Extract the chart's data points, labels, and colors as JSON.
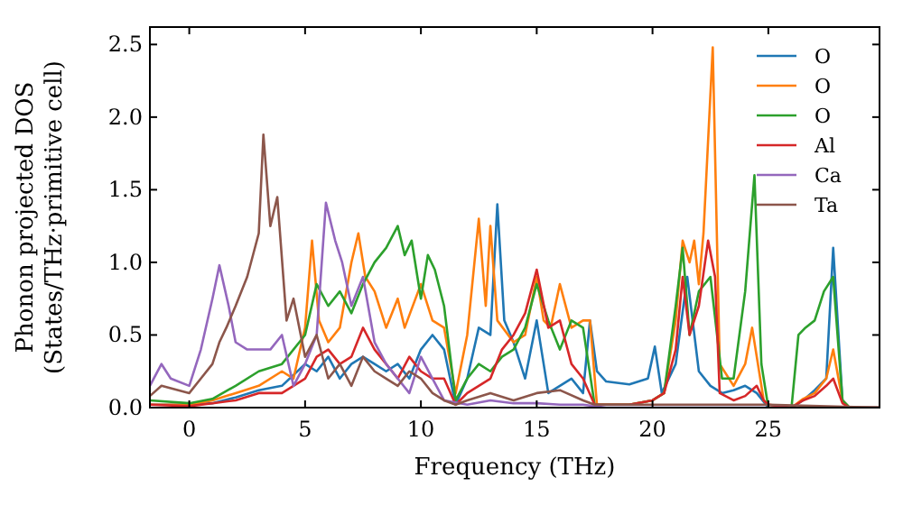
{
  "chart_data": {
    "type": "line",
    "xlabel": "Frequency (THz)",
    "ylabel": "Phonon projected DOS\n(States/THz·primitive cell)",
    "xlim": [
      -1.7,
      29.8
    ],
    "ylim": [
      0,
      2.62
    ],
    "xticks": [
      0,
      5,
      10,
      15,
      20,
      25
    ],
    "yticks": [
      {
        "value": 0,
        "label": "0.0"
      },
      {
        "value": 0.5,
        "label": "0.5"
      },
      {
        "value": 1,
        "label": "1.0"
      },
      {
        "value": 1.5,
        "label": "1.5"
      },
      {
        "value": 2,
        "label": "2.0"
      },
      {
        "value": 2.5,
        "label": "2.5"
      }
    ],
    "grid": false,
    "legend": "top right",
    "line_style": "solid",
    "series": [
      {
        "name": "O",
        "color": "#1f77b4",
        "x": [
          -1.7,
          0,
          1,
          2,
          3,
          4,
          5,
          5.5,
          6,
          6.5,
          7,
          7.5,
          8,
          8.5,
          9,
          9.5,
          10,
          10.5,
          11,
          11.5,
          12,
          12.5,
          13,
          13.3,
          13.6,
          14,
          14.5,
          15,
          15.5,
          16,
          16.5,
          17,
          17.3,
          17.6,
          18,
          19,
          19.8,
          20.1,
          20.4,
          21,
          21.5,
          22,
          22.5,
          23,
          23.5,
          24,
          24.5,
          25,
          26,
          26.5,
          27,
          27.5,
          27.8,
          28.2,
          28.5,
          29.8
        ],
        "values": [
          0.02,
          0.02,
          0.03,
          0.07,
          0.12,
          0.15,
          0.3,
          0.25,
          0.35,
          0.2,
          0.3,
          0.35,
          0.3,
          0.25,
          0.3,
          0.2,
          0.4,
          0.5,
          0.4,
          0.02,
          0.2,
          0.55,
          0.5,
          1.4,
          0.6,
          0.45,
          0.2,
          0.6,
          0.1,
          0.15,
          0.2,
          0.1,
          0.6,
          0.25,
          0.18,
          0.16,
          0.2,
          0.42,
          0.1,
          0.3,
          0.9,
          0.25,
          0.15,
          0.1,
          0.12,
          0.15,
          0.1,
          0,
          0,
          0.05,
          0.12,
          0.2,
          1.1,
          0.05,
          0,
          0
        ]
      },
      {
        "name": "O",
        "color": "#ff7f0e",
        "x": [
          -1.7,
          0,
          1,
          2,
          3,
          4,
          4.5,
          5,
          5.3,
          5.6,
          6,
          6.5,
          7,
          7.3,
          7.6,
          8,
          8.5,
          9,
          9.3,
          10,
          10.5,
          11,
          11.5,
          12,
          12.5,
          12.8,
          13,
          13.3,
          14,
          14.5,
          15,
          15.3,
          15.6,
          16,
          16.5,
          17,
          17.3,
          17.6,
          19,
          20,
          20.5,
          21,
          21.3,
          21.6,
          21.8,
          22,
          22.2,
          22.6,
          22.9,
          23.5,
          24,
          24.3,
          24.5,
          24.8,
          25,
          26,
          26.5,
          27,
          27.5,
          27.8,
          28.2,
          28.5,
          29.8
        ],
        "values": [
          0.02,
          0.02,
          0.05,
          0.1,
          0.15,
          0.25,
          0.2,
          0.55,
          1.15,
          0.6,
          0.45,
          0.55,
          1,
          1.2,
          0.9,
          0.8,
          0.55,
          0.75,
          0.55,
          0.85,
          0.6,
          0.55,
          0.1,
          0.5,
          1.3,
          0.7,
          1.25,
          0.6,
          0.45,
          0.5,
          0.9,
          0.6,
          0.55,
          0.85,
          0.55,
          0.6,
          0.6,
          0.02,
          0.02,
          0.05,
          0.1,
          0.6,
          1.15,
          1,
          1.15,
          0.85,
          1.2,
          2.48,
          0.3,
          0.15,
          0.3,
          0.55,
          0.35,
          0.05,
          0.02,
          0,
          0.06,
          0.1,
          0.2,
          0.4,
          0.05,
          0,
          0
        ]
      },
      {
        "name": "O",
        "color": "#2ca02c",
        "x": [
          -1.7,
          0,
          1,
          2,
          3,
          4,
          5,
          5.5,
          6,
          6.5,
          7,
          7.5,
          8,
          8.5,
          9,
          9.3,
          9.6,
          10,
          10.3,
          10.6,
          11,
          11.5,
          12,
          12.5,
          13,
          13.5,
          14,
          14.5,
          15,
          15.5,
          16,
          16.5,
          17,
          17.5,
          19,
          20,
          20.5,
          21,
          21.3,
          21.6,
          22,
          22.5,
          23,
          23.5,
          24,
          24.4,
          24.7,
          25,
          26,
          26.3,
          26.6,
          27,
          27.4,
          27.8,
          28.2,
          28.5,
          29.8
        ],
        "values": [
          0.05,
          0.03,
          0.06,
          0.15,
          0.25,
          0.3,
          0.5,
          0.85,
          0.7,
          0.8,
          0.65,
          0.85,
          1,
          1.1,
          1.25,
          1.05,
          1.15,
          0.75,
          1.05,
          0.95,
          0.7,
          0.05,
          0.2,
          0.3,
          0.25,
          0.35,
          0.4,
          0.55,
          0.85,
          0.6,
          0.4,
          0.6,
          0.55,
          0.02,
          0.02,
          0.05,
          0.1,
          0.7,
          1.1,
          0.5,
          0.8,
          0.9,
          0.2,
          0.2,
          0.8,
          1.6,
          0.3,
          0,
          0,
          0.5,
          0.55,
          0.6,
          0.8,
          0.9,
          0.05,
          0,
          0
        ]
      },
      {
        "name": "Al",
        "color": "#d62728",
        "x": [
          -1.7,
          0,
          1,
          2,
          3,
          4,
          5,
          5.5,
          6,
          6.5,
          7,
          7.5,
          8,
          8.5,
          9,
          9.5,
          10,
          10.5,
          11,
          11.5,
          12,
          12.5,
          13,
          13.5,
          14,
          14.5,
          15,
          15.5,
          16,
          16.5,
          17,
          17.5,
          19,
          20,
          20.5,
          21,
          21.3,
          21.6,
          22,
          22.4,
          22.7,
          22.9,
          23.5,
          24,
          24.5,
          24.8,
          25,
          26,
          26.5,
          27,
          27.5,
          27.8,
          28.2,
          28.5,
          29.8
        ],
        "values": [
          0.02,
          0.01,
          0.03,
          0.05,
          0.1,
          0.1,
          0.2,
          0.35,
          0.4,
          0.3,
          0.35,
          0.55,
          0.4,
          0.3,
          0.2,
          0.35,
          0.25,
          0.2,
          0.2,
          0.02,
          0.1,
          0.15,
          0.2,
          0.4,
          0.5,
          0.65,
          0.95,
          0.55,
          0.6,
          0.3,
          0.2,
          0.02,
          0.02,
          0.05,
          0.1,
          0.4,
          0.9,
          0.5,
          0.7,
          1.15,
          0.9,
          0.1,
          0.05,
          0.08,
          0.15,
          0.05,
          0.02,
          0,
          0.05,
          0.08,
          0.15,
          0.2,
          0.03,
          0,
          0
        ]
      },
      {
        "name": "Ca",
        "color": "#9467bd",
        "x": [
          -1.7,
          -1.2,
          -0.8,
          0,
          0.5,
          1,
          1.3,
          1.7,
          2,
          2.5,
          3,
          3.5,
          4,
          4.5,
          5,
          5.5,
          5.9,
          6.3,
          6.6,
          7,
          7.5,
          8,
          8.5,
          9,
          9.5,
          10,
          10.5,
          11,
          12,
          13,
          14,
          15,
          16,
          17,
          18,
          29.8
        ],
        "values": [
          0.15,
          0.3,
          0.2,
          0.15,
          0.4,
          0.75,
          0.98,
          0.7,
          0.45,
          0.4,
          0.4,
          0.4,
          0.5,
          0.15,
          0.3,
          0.5,
          1.41,
          1.15,
          1,
          0.7,
          0.9,
          0.45,
          0.3,
          0.2,
          0.1,
          0.35,
          0.2,
          0.05,
          0.02,
          0.05,
          0.03,
          0.03,
          0.02,
          0.02,
          0,
          0
        ]
      },
      {
        "name": "Ta",
        "color": "#8c564b",
        "x": [
          -1.7,
          -1.2,
          0,
          0.5,
          1,
          1.3,
          1.6,
          2,
          2.5,
          3,
          3.2,
          3.5,
          3.8,
          4.2,
          4.5,
          5,
          5.5,
          6,
          6.5,
          7,
          7.5,
          8,
          8.5,
          9,
          9.5,
          10,
          10.5,
          11,
          11.5,
          12,
          13,
          14,
          15,
          16,
          17,
          17.5,
          20,
          22,
          25,
          29.8
        ],
        "values": [
          0.08,
          0.15,
          0.1,
          0.2,
          0.3,
          0.45,
          0.55,
          0.7,
          0.9,
          1.2,
          1.88,
          1.25,
          1.45,
          0.6,
          0.75,
          0.35,
          0.5,
          0.2,
          0.3,
          0.15,
          0.35,
          0.25,
          0.2,
          0.15,
          0.25,
          0.2,
          0.1,
          0.05,
          0.02,
          0.05,
          0.1,
          0.05,
          0.1,
          0.12,
          0.05,
          0.02,
          0.02,
          0.02,
          0.02,
          0
        ]
      }
    ]
  }
}
